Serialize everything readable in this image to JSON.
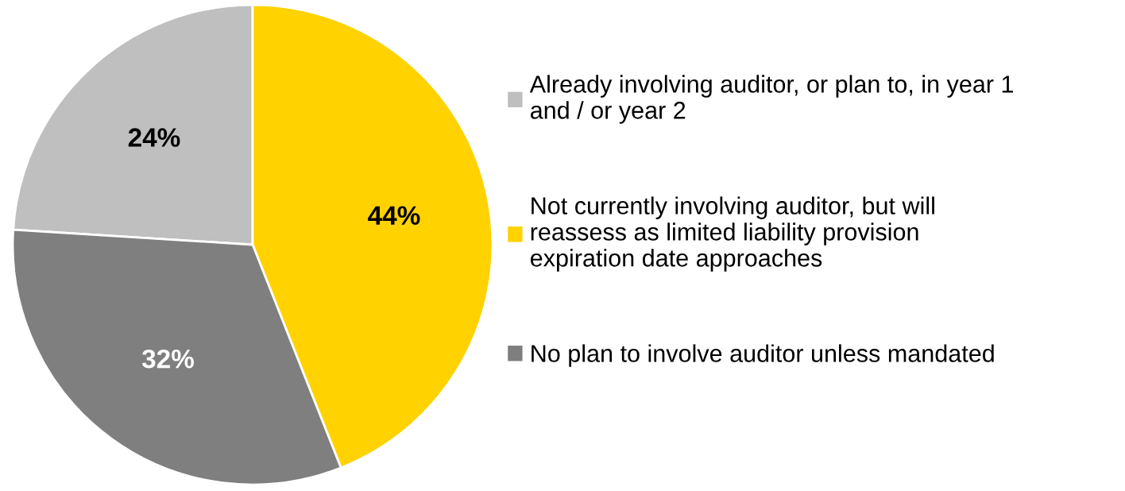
{
  "chart_data": {
    "type": "pie",
    "categories": [
      "Already involving auditor, or plan to, in year 1\nand / or year 2",
      "Not currently involving auditor, but will\nreassess as limited liability provision\nexpiration date approaches",
      "No plan to involve auditor unless mandated"
    ],
    "values": [
      24,
      44,
      32
    ],
    "colors": [
      "#bfbfbf",
      "#ffd200",
      "#7f7f7f"
    ],
    "value_labels": [
      "24%",
      "44%",
      "32%"
    ],
    "legend": "right"
  }
}
